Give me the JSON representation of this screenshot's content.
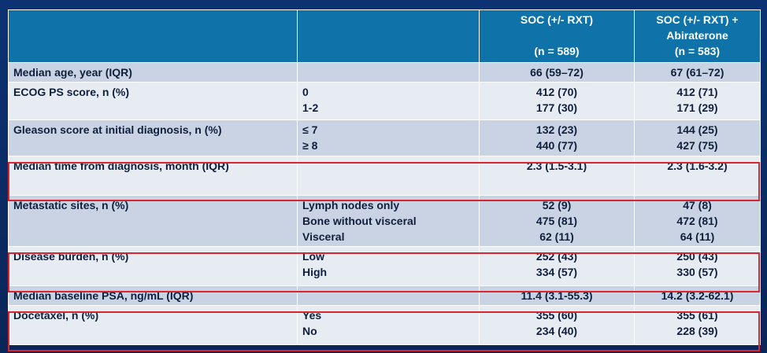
{
  "header": {
    "arm1_title": "SOC (+/- RXT)",
    "arm1_n": "(n = 589)",
    "arm2_title": "SOC (+/- RXT) +",
    "arm2_title2": "Abiraterone",
    "arm2_n": "(n = 583)"
  },
  "rows": [
    {
      "label": "Median age, year (IQR)",
      "sub": [
        ""
      ],
      "arm1": [
        "66 (59–72)"
      ],
      "arm2": [
        "67 (61–72)"
      ]
    },
    {
      "label": "ECOG PS score, n (%)",
      "sub": [
        "0",
        "1-2"
      ],
      "arm1": [
        "412 (70)",
        "177 (30)"
      ],
      "arm2": [
        "412 (71)",
        "171 (29)"
      ]
    },
    {
      "label": "Gleason score at initial diagnosis, n (%)",
      "sub": [
        "≤ 7",
        "≥ 8"
      ],
      "arm1": [
        "132 (23)",
        "440 (77)"
      ],
      "arm2": [
        "144 (25)",
        "427 (75)"
      ]
    },
    {
      "label": "Median time from diagnosis, month (IQR)",
      "sub": [
        ""
      ],
      "arm1": [
        "2.3 (1.5-3.1)"
      ],
      "arm2": [
        "2.3 (1.6-3.2)"
      ]
    },
    {
      "label": "Metastatic sites, n (%)",
      "sub": [
        "Lymph nodes only",
        "Bone without visceral",
        "Visceral"
      ],
      "arm1": [
        "52 (9)",
        "475 (81)",
        "62 (11)"
      ],
      "arm2": [
        "47 (8)",
        "472 (81)",
        "64 (11)"
      ]
    },
    {
      "label": "Disease burden, n (%)",
      "sub": [
        "Low",
        "High"
      ],
      "arm1": [
        "252 (43)",
        "334 (57)"
      ],
      "arm2": [
        "250 (43)",
        "330 (57)"
      ]
    },
    {
      "label": "Median baseline PSA, ng/mL (IQR)",
      "sub": [
        ""
      ],
      "arm1": [
        "11.4 (3.1-55.3)"
      ],
      "arm2": [
        "14.2 (3.2-62.1)"
      ]
    },
    {
      "label": "Docetaxel, n (%)",
      "sub": [
        "Yes",
        "No"
      ],
      "arm1": [
        "355 (60)",
        "234 (40)"
      ],
      "arm2": [
        "355 (61)",
        "228 (39)"
      ]
    }
  ],
  "colors": {
    "header": "#0f72a8",
    "row_dark": "#c9d3e3",
    "row_light": "#e7ebf2",
    "highlight": "#d8262c",
    "background": "#0b2a66"
  }
}
